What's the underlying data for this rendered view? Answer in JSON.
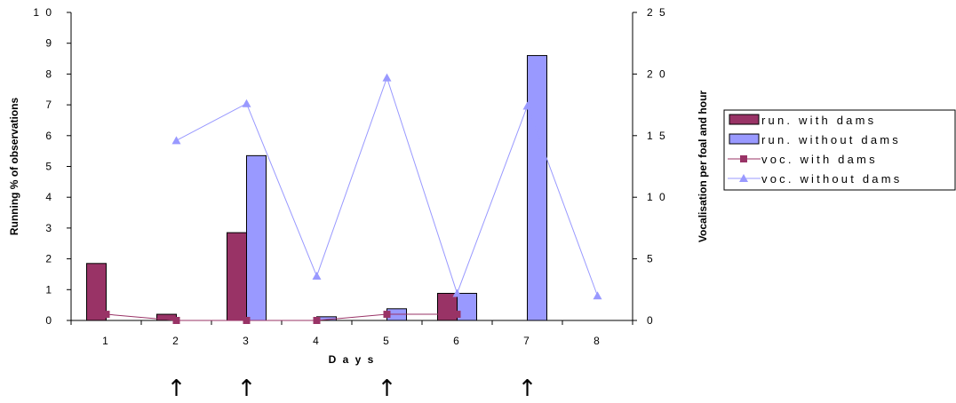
{
  "colors": {
    "run_with": "#993366",
    "run_without": "#9999FF",
    "voc_with": "#993366",
    "voc_without": "#9999FF",
    "axis": "#000000"
  },
  "chart_data": {
    "type": "bar",
    "categories": [
      "1",
      "2",
      "3",
      "4",
      "5",
      "6",
      "7",
      "8"
    ],
    "xlabel": "Days",
    "ylabel": "Running % of observations",
    "y2label": "Vocalisation per foal and hour",
    "ylim": [
      0,
      10
    ],
    "y2lim": [
      0,
      25
    ],
    "yticks": [
      "0",
      "1",
      "2",
      "3",
      "4",
      "5",
      "6",
      "7",
      "8",
      "9",
      "1 0"
    ],
    "y2ticks": [
      "0",
      "5",
      "1 0",
      "1 5",
      "2 0",
      "2 5"
    ],
    "grid": false,
    "legend_position": "right",
    "series": [
      {
        "name": "run. with dams",
        "kind": "bar",
        "axis": "left",
        "values": [
          1.85,
          0.2,
          2.85,
          0,
          0,
          0.88,
          0,
          0
        ]
      },
      {
        "name": "run. without dams",
        "kind": "bar",
        "axis": "left",
        "values": [
          0,
          0,
          5.35,
          0.12,
          0.38,
          0.88,
          8.6,
          0
        ]
      },
      {
        "name": "voc. with dams",
        "kind": "line",
        "axis": "right",
        "marker": "square",
        "values": [
          0.5,
          0,
          0,
          0,
          0.5,
          0.5,
          null,
          null
        ]
      },
      {
        "name": "voc. without dams",
        "kind": "line",
        "axis": "right",
        "marker": "triangle",
        "values": [
          null,
          14.6,
          17.6,
          3.6,
          19.7,
          2.2,
          17.4,
          2
        ]
      }
    ],
    "annotations": {
      "arrows_under_days": [
        "2",
        "3",
        "5",
        "7"
      ],
      "arrow_symbol": "↑"
    }
  }
}
